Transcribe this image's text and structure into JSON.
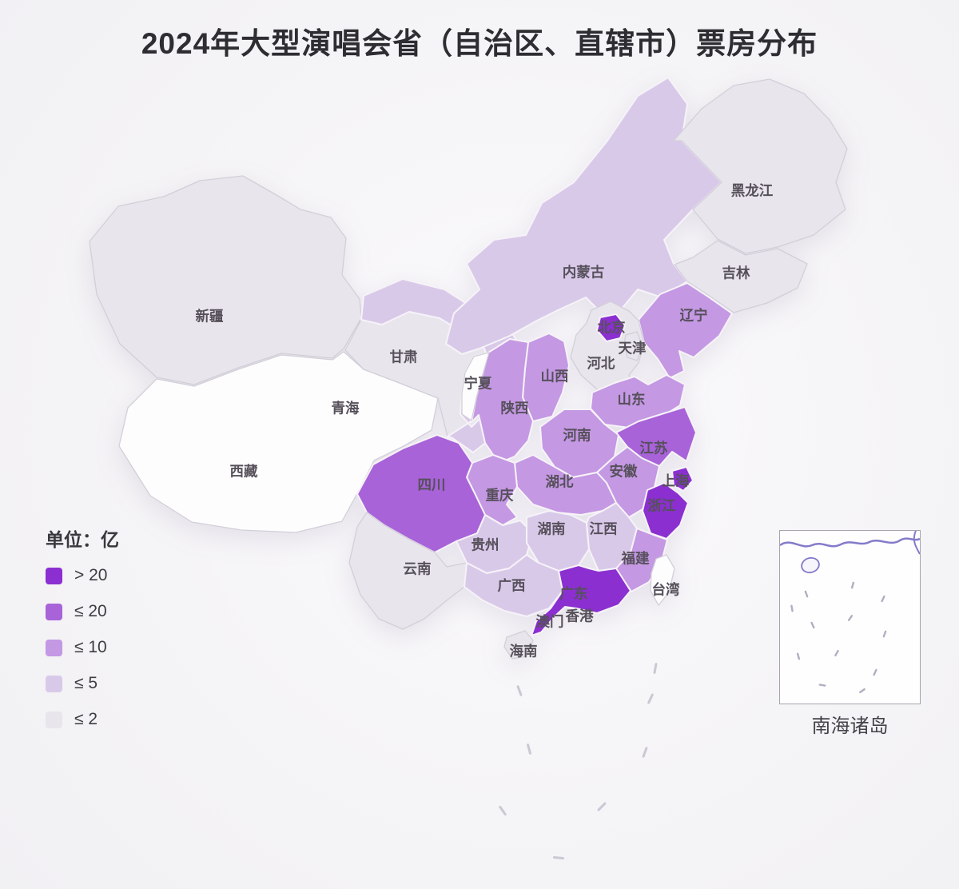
{
  "title": "2024年大型演唱会省（自治区、直辖市）票房分布",
  "legend": {
    "unit_label": "单位：亿",
    "items": [
      {
        "key": "gt20",
        "label": "> 20",
        "color": "#8b2fd1"
      },
      {
        "key": "le20",
        "label": "≤ 20",
        "color": "#a863d9"
      },
      {
        "key": "le10",
        "label": "≤ 10",
        "color": "#c498e3"
      },
      {
        "key": "le5",
        "label": "≤ 5",
        "color": "#d9c9e9"
      },
      {
        "key": "le2",
        "label": "≤ 2",
        "color": "#e8e6ec"
      }
    ],
    "no_data_color": "#fdfdfe"
  },
  "inset": {
    "label": "南海诸岛"
  },
  "chart_data": {
    "type": "choropleth",
    "title": "2024年大型演唱会省（自治区、直辖市）票房分布",
    "unit": "亿",
    "legend_buckets": [
      "> 20",
      "≤ 20",
      "≤ 10",
      "≤ 5",
      "≤ 2"
    ],
    "regions": [
      {
        "name": "新疆",
        "bucket": "le2"
      },
      {
        "name": "西藏",
        "bucket": "none"
      },
      {
        "name": "青海",
        "bucket": "le2"
      },
      {
        "name": "甘肃",
        "bucket": "le5"
      },
      {
        "name": "内蒙古",
        "bucket": "le5"
      },
      {
        "name": "黑龙江",
        "bucket": "le2"
      },
      {
        "name": "吉林",
        "bucket": "le2"
      },
      {
        "name": "辽宁",
        "bucket": "le10"
      },
      {
        "name": "河北",
        "bucket": "le2"
      },
      {
        "name": "山西",
        "bucket": "le10"
      },
      {
        "name": "陕西",
        "bucket": "le10"
      },
      {
        "name": "宁夏",
        "bucket": "none"
      },
      {
        "name": "山东",
        "bucket": "le10"
      },
      {
        "name": "河南",
        "bucket": "le10"
      },
      {
        "name": "江苏",
        "bucket": "le20"
      },
      {
        "name": "安徽",
        "bucket": "le10"
      },
      {
        "name": "湖北",
        "bucket": "le10"
      },
      {
        "name": "重庆",
        "bucket": "le10"
      },
      {
        "name": "四川",
        "bucket": "le20"
      },
      {
        "name": "贵州",
        "bucket": "le5"
      },
      {
        "name": "云南",
        "bucket": "le2"
      },
      {
        "name": "湖南",
        "bucket": "le5"
      },
      {
        "name": "江西",
        "bucket": "le5"
      },
      {
        "name": "浙江",
        "bucket": "gt20"
      },
      {
        "name": "福建",
        "bucket": "le10"
      },
      {
        "name": "广西",
        "bucket": "le5"
      },
      {
        "name": "广东",
        "bucket": "gt20"
      },
      {
        "name": "海南",
        "bucket": "le2"
      },
      {
        "name": "台湾",
        "bucket": "none"
      },
      {
        "name": "北京",
        "bucket": "gt20"
      },
      {
        "name": "天津",
        "bucket": "le2"
      },
      {
        "name": "上海",
        "bucket": "gt20"
      },
      {
        "name": "香港",
        "bucket": "none"
      },
      {
        "name": "澳门",
        "bucket": "none"
      }
    ]
  }
}
